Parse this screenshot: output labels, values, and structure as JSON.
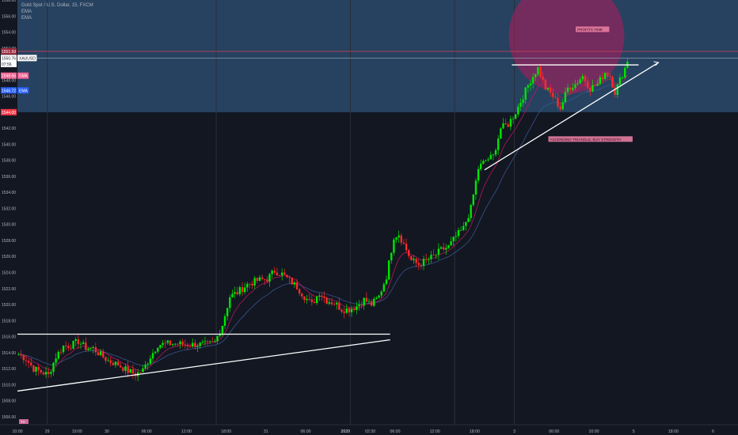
{
  "header": {
    "symbol_title": "Gold Spot / U.S. Dollar, 15, FXCM",
    "indicators": [
      "EMA",
      "EMA"
    ]
  },
  "chart_data": {
    "type": "candlestick",
    "symbol": "XAUUSD",
    "ylim": [
      1505,
      1558
    ],
    "y_ticks": [
      1506,
      1508,
      1510,
      1512,
      1514,
      1516,
      1518,
      1520,
      1522,
      1524,
      1526,
      1528,
      1530,
      1532,
      1534,
      1536,
      1538,
      1540,
      1542,
      1544,
      1546,
      1548,
      1550,
      1552,
      1554,
      1556,
      1558
    ],
    "x_ticks": [
      {
        "i": 0,
        "label": "10:00"
      },
      {
        "i": 12,
        "label": "29"
      },
      {
        "i": 24,
        "label": "19:00"
      },
      {
        "i": 36,
        "label": "30"
      },
      {
        "i": 52,
        "label": "06:00"
      },
      {
        "i": 68,
        "label": "12:00"
      },
      {
        "i": 84,
        "label": "18:00"
      },
      {
        "i": 100,
        "label": "31"
      },
      {
        "i": 116,
        "label": "06:00"
      },
      {
        "i": 132,
        "label": "2020"
      },
      {
        "i": 142,
        "label": "02:30"
      },
      {
        "i": 152,
        "label": "06:00"
      },
      {
        "i": 168,
        "label": "12:00"
      },
      {
        "i": 184,
        "label": "18:00"
      },
      {
        "i": 200,
        "label": "3"
      },
      {
        "i": 216,
        "label": "06:00"
      },
      {
        "i": 232,
        "label": "10:00"
      },
      {
        "i": 248,
        "label": "5"
      },
      {
        "i": 264,
        "label": "18:00"
      },
      {
        "i": 280,
        "label": "6"
      }
    ],
    "vertical_session_lines": [
      12,
      80,
      134,
      176,
      200
    ],
    "price_path": [
      [
        0,
        1513.8
      ],
      [
        3,
        1513.2
      ],
      [
        6,
        1512.0
      ],
      [
        9,
        1511.6
      ],
      [
        12,
        1511.2
      ],
      [
        15,
        1513.5
      ],
      [
        18,
        1514.8
      ],
      [
        21,
        1514.9
      ],
      [
        24,
        1515.4
      ],
      [
        27,
        1514.6
      ],
      [
        30,
        1514.5
      ],
      [
        33,
        1513.7
      ],
      [
        36,
        1513.0
      ],
      [
        40,
        1512.5
      ],
      [
        44,
        1511.7
      ],
      [
        47,
        1511.3
      ],
      [
        50,
        1511.8
      ],
      [
        53,
        1513.5
      ],
      [
        56,
        1515.0
      ],
      [
        60,
        1515.1
      ],
      [
        64,
        1515.1
      ],
      [
        68,
        1515.0
      ],
      [
        72,
        1515.0
      ],
      [
        76,
        1515.0
      ],
      [
        79,
        1515.3
      ],
      [
        82,
        1517.5
      ],
      [
        85,
        1521.0
      ],
      [
        88,
        1521.5
      ],
      [
        92,
        1522.5
      ],
      [
        96,
        1523.0
      ],
      [
        100,
        1523.2
      ],
      [
        103,
        1524.2
      ],
      [
        106,
        1523.8
      ],
      [
        109,
        1523.0
      ],
      [
        112,
        1522.2
      ],
      [
        115,
        1521.0
      ],
      [
        118,
        1520.0
      ],
      [
        121,
        1521.5
      ],
      [
        124,
        1520.5
      ],
      [
        127,
        1520.2
      ],
      [
        130,
        1519.4
      ],
      [
        133,
        1519.4
      ],
      [
        136,
        1519.8
      ],
      [
        139,
        1520.6
      ],
      [
        142,
        1520.0
      ],
      [
        145,
        1521.0
      ],
      [
        148,
        1523.5
      ],
      [
        151,
        1528.5
      ],
      [
        153,
        1528.8
      ],
      [
        155,
        1527.5
      ],
      [
        158,
        1525.5
      ],
      [
        161,
        1525.0
      ],
      [
        164,
        1525.5
      ],
      [
        167,
        1526.0
      ],
      [
        170,
        1526.8
      ],
      [
        173,
        1527.2
      ],
      [
        176,
        1528.5
      ],
      [
        179,
        1529.5
      ],
      [
        182,
        1532.0
      ],
      [
        185,
        1537.0
      ],
      [
        188,
        1538.0
      ],
      [
        191,
        1538.5
      ],
      [
        194,
        1542.0
      ],
      [
        197,
        1542.5
      ],
      [
        200,
        1544.0
      ],
      [
        203,
        1546.0
      ],
      [
        206,
        1548.0
      ],
      [
        209,
        1549.5
      ],
      [
        212,
        1547.0
      ],
      [
        215,
        1546.0
      ],
      [
        218,
        1544.5
      ],
      [
        221,
        1547.0
      ],
      [
        224,
        1547.5
      ],
      [
        227,
        1548.5
      ],
      [
        230,
        1547.0
      ],
      [
        233,
        1547.5
      ],
      [
        236,
        1549.0
      ],
      [
        238,
        1548.5
      ],
      [
        240,
        1546.5
      ],
      [
        242,
        1548.0
      ],
      [
        244,
        1549.5
      ],
      [
        245,
        1550.5
      ]
    ],
    "candle_count": 246,
    "ema_fast_label": "EMA",
    "ema_fast_value": 1548.56,
    "ema_slow_label": "EMA",
    "ema_slow_value": 1546.72,
    "price_labels": [
      {
        "value": 1551.59,
        "text": "1551.59",
        "bg": "#9b2a3e"
      },
      {
        "value": 1550.76,
        "text": "1550.76",
        "bg": "#ffffff",
        "tag": "XAUUSD"
      },
      {
        "value": 1550.02,
        "text": "07:56",
        "bg": "#ffffff"
      },
      {
        "value": 1548.56,
        "text": "1548.56",
        "bg": "#f06292",
        "tag": "EMA"
      },
      {
        "value": 1546.72,
        "text": "1546.72",
        "bg": "#2962ff",
        "tag": "EMA"
      },
      {
        "value": 1544.0,
        "text": "1544.00",
        "bg": "#f23645"
      }
    ],
    "zones": [
      {
        "kind": "sell-zone",
        "y_from": 1544.0,
        "y_to": 1558,
        "color": "#2a4a6b"
      }
    ],
    "lines": [
      {
        "name": "target-line",
        "y": 1551.59,
        "i0": 0,
        "i1": 290,
        "color": "#c0405a"
      },
      {
        "name": "current-price-line",
        "y": 1550.76,
        "i0": 0,
        "i1": 290,
        "color": "#8a9bb0"
      },
      {
        "name": "flag-top-line",
        "points": [
          [
            0,
            1516.3
          ],
          [
            150,
            1516.3
          ]
        ],
        "color": "#ffffff"
      },
      {
        "name": "flag-bottom-line",
        "points": [
          [
            0,
            1509.2
          ],
          [
            150,
            1515.6
          ]
        ],
        "color": "#ffffff"
      },
      {
        "name": "triangle-top-line",
        "points": [
          [
            199,
            1549.9
          ],
          [
            250,
            1549.9
          ]
        ],
        "color": "#ffffff"
      },
      {
        "name": "triangle-support-line",
        "points": [
          [
            188,
            1536.8
          ],
          [
            258,
            1550.2
          ]
        ],
        "color": "#ffffff"
      }
    ],
    "circle": {
      "i": 221,
      "y": 1553.5,
      "color": "#b5195d"
    },
    "annotations": [
      {
        "text": "PROFITS TIME",
        "i": 225,
        "y": 1554.2
      },
      {
        "text": "ASCENDING TRIANGLE, BUY STRENGTH",
        "i": 214,
        "y": 1540.5
      }
    ],
    "corner_badge": "TV",
    "title": "",
    "xlabel": "",
    "ylabel": ""
  }
}
